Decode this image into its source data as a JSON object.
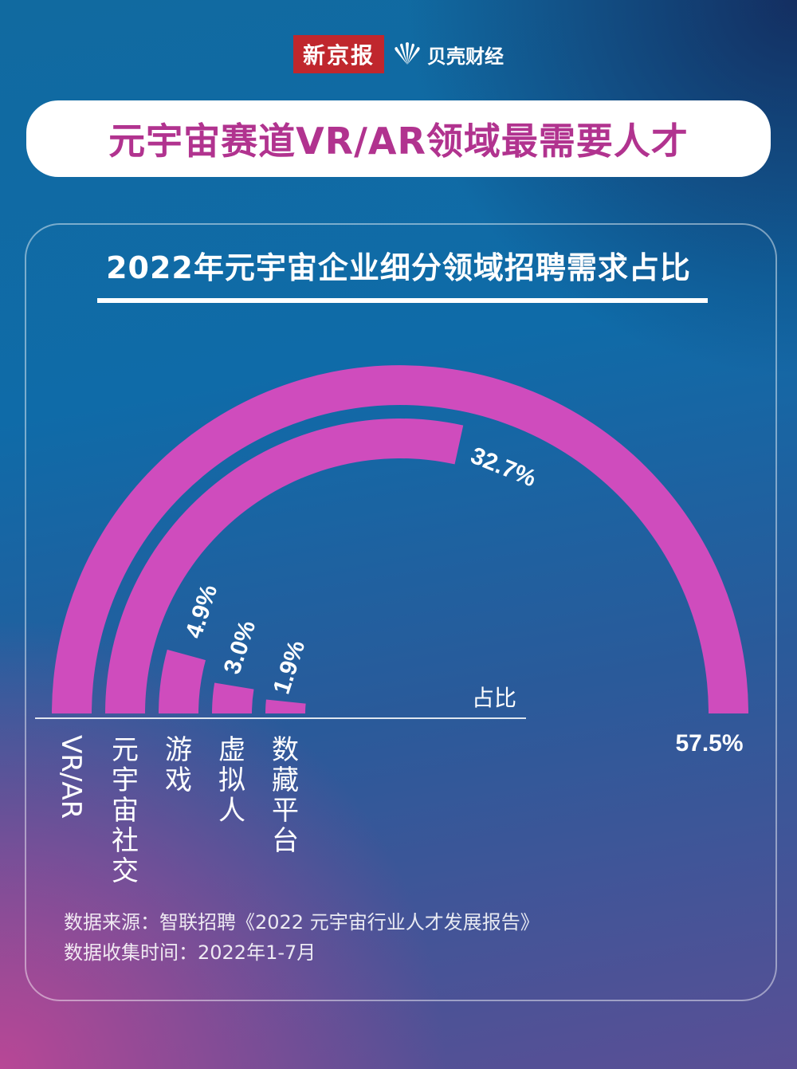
{
  "header": {
    "brand_xjb": "新京报",
    "brand_bk": "贝壳财经",
    "title": "元宇宙赛道VR/AR领域最需要人才"
  },
  "colors": {
    "arc": "#cf4cbd",
    "title": "#b1338f"
  },
  "chart_data": {
    "type": "radial-bar",
    "title": "2022年元宇宙企业细分领域招聘需求占比",
    "axis_label": "占比",
    "categories": [
      "VR/AR",
      "元宇宙社交",
      "游戏",
      "虚拟人",
      "数藏平台"
    ],
    "values": [
      57.5,
      32.7,
      4.9,
      3.0,
      1.9
    ],
    "value_labels": [
      "57.5%",
      "32.7%",
      "4.9%",
      "3.0%",
      "1.9%"
    ],
    "max": 57.5
  },
  "source": {
    "line1": "数据来源：智联招聘《2022 元宇宙行业人才发展报告》",
    "line2": "数据收集时间：2022年1-7月"
  }
}
